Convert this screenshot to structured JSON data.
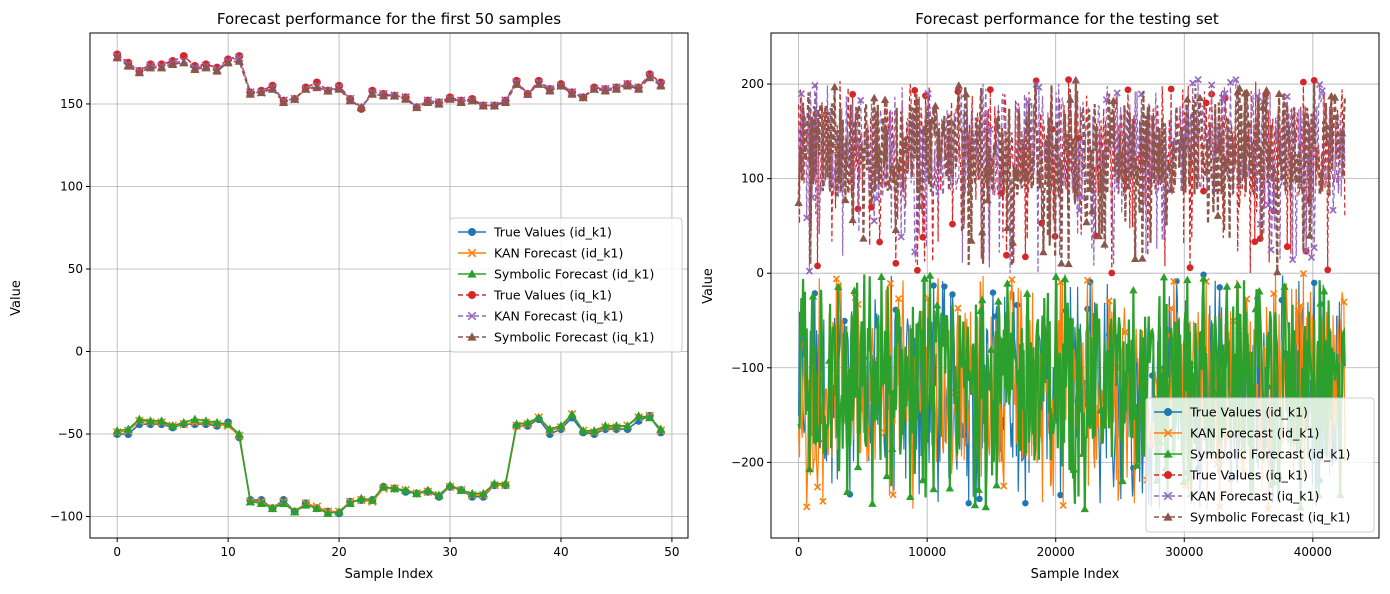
{
  "chart_data": [
    {
      "type": "line",
      "title": "Forecast performance for the first 50 samples",
      "xlabel": "Sample Index",
      "ylabel": "Value",
      "xlim": [
        -2.45,
        51.45
      ],
      "ylim": [
        -113,
        193
      ],
      "xticks": [
        0,
        10,
        20,
        30,
        40,
        50
      ],
      "yticks": [
        -100,
        -50,
        0,
        50,
        100,
        150
      ],
      "grid": true,
      "legend_position": "center-right",
      "series": [
        {
          "name": "True Values (id_k1)",
          "color": "#1f77b4",
          "linestyle": "solid",
          "marker": "circle",
          "values": [
            -50,
            -50,
            -44,
            -44,
            -44,
            -46,
            -44,
            -44,
            -44,
            -45,
            -43,
            -52,
            -90,
            -90,
            -95,
            -90,
            -97,
            -92,
            -95,
            -97,
            -98,
            -91,
            -90,
            -90,
            -82,
            -83,
            -85,
            -86,
            -85,
            -88,
            -82,
            -84,
            -88,
            -88,
            -81,
            -81,
            -45,
            -45,
            -41,
            -50,
            -47,
            -40,
            -49,
            -50,
            -47,
            -47,
            -47,
            -42,
            -39,
            -49
          ]
        },
        {
          "name": "KAN Forecast (id_k1)",
          "color": "#ff7f0e",
          "linestyle": "solid",
          "marker": "x",
          "values": [
            -49,
            -48,
            -42,
            -43,
            -43,
            -45,
            -44,
            -43,
            -43,
            -44,
            -45,
            -51,
            -91,
            -91,
            -95,
            -91,
            -97,
            -92,
            -94,
            -97,
            -97,
            -91,
            -90,
            -91,
            -83,
            -83,
            -84,
            -86,
            -85,
            -87,
            -82,
            -84,
            -87,
            -87,
            -81,
            -81,
            -45,
            -44,
            -40,
            -48,
            -46,
            -38,
            -48,
            -49,
            -46,
            -46,
            -45,
            -40,
            -39,
            -48
          ]
        },
        {
          "name": "Symbolic Forecast (id_k1)",
          "color": "#2ca02c",
          "linestyle": "solid",
          "marker": "triangle",
          "values": [
            -48,
            -47,
            -41,
            -42,
            -42,
            -45,
            -43,
            -41,
            -42,
            -43,
            -44,
            -50,
            -91,
            -92,
            -95,
            -92,
            -97,
            -93,
            -95,
            -98,
            -97,
            -92,
            -89,
            -90,
            -82,
            -83,
            -84,
            -86,
            -84,
            -87,
            -81,
            -84,
            -86,
            -86,
            -80,
            -80,
            -44,
            -43,
            -40,
            -47,
            -45,
            -38,
            -48,
            -48,
            -45,
            -45,
            -45,
            -39,
            -40,
            -47
          ]
        },
        {
          "name": "True Values (iq_k1)",
          "color": "#d62728",
          "linestyle": "dashed",
          "marker": "circle",
          "values": [
            180,
            175,
            170,
            174,
            174,
            176,
            179,
            173,
            174,
            172,
            177,
            179,
            157,
            158,
            161,
            152,
            153,
            160,
            163,
            158,
            161,
            153,
            147,
            158,
            156,
            155,
            154,
            148,
            152,
            151,
            154,
            152,
            153,
            149,
            149,
            152,
            164,
            156,
            164,
            159,
            162,
            157,
            154,
            160,
            159,
            160,
            162,
            160,
            168,
            163
          ]
        },
        {
          "name": "KAN Forecast (iq_k1)",
          "color": "#9467bd",
          "linestyle": "dashed",
          "marker": "x",
          "values": [
            179,
            174,
            170,
            173,
            173,
            175,
            176,
            172,
            173,
            171,
            176,
            178,
            157,
            157,
            160,
            152,
            153,
            159,
            161,
            158,
            160,
            153,
            148,
            157,
            156,
            155,
            154,
            148,
            152,
            151,
            153,
            152,
            152,
            149,
            149,
            152,
            163,
            156,
            163,
            159,
            161,
            157,
            154,
            159,
            159,
            160,
            162,
            160,
            167,
            162
          ]
        },
        {
          "name": "Symbolic Forecast (iq_k1)",
          "color": "#8c564b",
          "linestyle": "dashed",
          "marker": "triangle",
          "values": [
            178,
            173,
            169,
            172,
            172,
            174,
            175,
            171,
            172,
            170,
            175,
            176,
            156,
            157,
            159,
            151,
            153,
            159,
            160,
            158,
            159,
            152,
            148,
            156,
            155,
            155,
            153,
            148,
            151,
            150,
            153,
            151,
            152,
            149,
            149,
            151,
            162,
            156,
            162,
            158,
            161,
            156,
            154,
            159,
            158,
            159,
            161,
            159,
            166,
            161
          ]
        }
      ]
    },
    {
      "type": "line",
      "title": "Forecast performance for the testing set",
      "xlabel": "Sample Index",
      "ylabel": "Value",
      "xlim": [
        -2150,
        45150
      ],
      "ylim": [
        -280,
        254
      ],
      "xticks": [
        0,
        10000,
        20000,
        30000,
        40000
      ],
      "yticks": [
        -200,
        -100,
        0,
        100,
        200
      ],
      "grid": true,
      "legend_position": "lower-right",
      "n_samples": 42500,
      "bands": [
        {
          "series": "iq_k1",
          "lower": 0,
          "upper": 205,
          "base_range": [
            80,
            180
          ]
        },
        {
          "series": "id_k1",
          "lower": -250,
          "upper": 0,
          "base_range": [
            -200,
            -40
          ]
        }
      ],
      "series": [
        {
          "name": "True Values (id_k1)",
          "color": "#1f77b4",
          "linestyle": "solid",
          "marker": "circle"
        },
        {
          "name": "KAN Forecast (id_k1)",
          "color": "#ff7f0e",
          "linestyle": "solid",
          "marker": "x"
        },
        {
          "name": "Symbolic Forecast (id_k1)",
          "color": "#2ca02c",
          "linestyle": "solid",
          "marker": "triangle"
        },
        {
          "name": "True Values (iq_k1)",
          "color": "#d62728",
          "linestyle": "dashed",
          "marker": "circle"
        },
        {
          "name": "KAN Forecast (iq_k1)",
          "color": "#9467bd",
          "linestyle": "dashed",
          "marker": "x"
        },
        {
          "name": "Symbolic Forecast (iq_k1)",
          "color": "#8c564b",
          "linestyle": "dashed",
          "marker": "triangle"
        }
      ]
    }
  ]
}
